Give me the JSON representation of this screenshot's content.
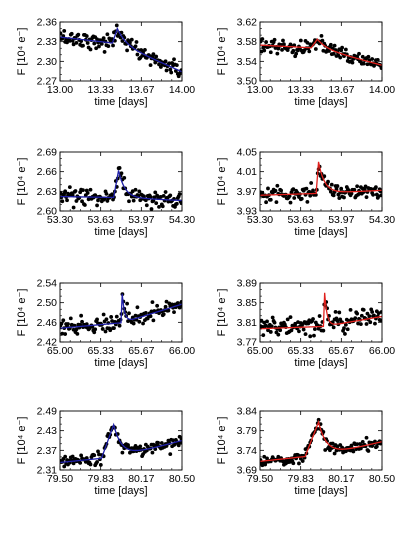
{
  "figure": {
    "xlabel": "time [days]",
    "ylabel": "F [10⁴ e⁻]"
  },
  "colors": {
    "blue": "#1f1fa8",
    "red": "#e0201c",
    "points": "#000000"
  },
  "chart_data": [
    {
      "type": "scatter",
      "row": 0,
      "col": 0,
      "fit_color": "blue",
      "xlim": [
        13.0,
        14.0
      ],
      "ylim": [
        2.27,
        2.36
      ],
      "xticks": [
        "13.00",
        "13.33",
        "13.67",
        "14.00"
      ],
      "yticks": [
        "2.27",
        "2.30",
        "2.33",
        "2.36"
      ],
      "flare": {
        "baseline_start": 2.337,
        "baseline_end": 2.316,
        "t_start": 13.43,
        "t_peak": 13.47,
        "peak": 2.35,
        "decay": 0.055,
        "tail_end": 2.284,
        "noise": 0.006
      }
    },
    {
      "type": "scatter",
      "row": 0,
      "col": 1,
      "fit_color": "red",
      "xlim": [
        13.0,
        14.0
      ],
      "ylim": [
        3.5,
        3.62
      ],
      "xticks": [
        "13.00",
        "13.33",
        "13.67",
        "14.00"
      ],
      "yticks": [
        "3.50",
        "3.54",
        "3.58",
        "3.62"
      ],
      "flare": {
        "baseline_start": 3.573,
        "baseline_end": 3.56,
        "t_start": 13.42,
        "t_peak": 13.47,
        "peak": 3.585,
        "decay": 0.06,
        "tail_end": 3.532,
        "noise": 0.008
      }
    },
    {
      "type": "scatter",
      "row": 1,
      "col": 0,
      "fit_color": "blue",
      "xlim": [
        53.3,
        54.3
      ],
      "ylim": [
        2.6,
        2.69
      ],
      "xticks": [
        "53.30",
        "53.63",
        "53.97",
        "54.30"
      ],
      "yticks": [
        "2.60",
        "2.63",
        "2.66",
        "2.69"
      ],
      "flare": {
        "baseline_start": 2.622,
        "baseline_end": 2.619,
        "t_start": 53.74,
        "t_peak": 53.78,
        "peak": 2.662,
        "decay": 0.05,
        "tail_end": 2.616,
        "noise": 0.006
      }
    },
    {
      "type": "scatter",
      "row": 1,
      "col": 1,
      "fit_color": "red",
      "xlim": [
        53.3,
        54.3
      ],
      "ylim": [
        3.93,
        4.05
      ],
      "xticks": [
        "53.30",
        "53.63",
        "53.97",
        "54.30"
      ],
      "yticks": [
        "3.93",
        "3.97",
        "4.01",
        "4.05"
      ],
      "flare": {
        "baseline_start": 3.962,
        "baseline_end": 3.97,
        "t_start": 53.76,
        "t_peak": 53.78,
        "peak": 4.03,
        "decay": 0.05,
        "tail_end": 3.972,
        "noise": 0.008
      }
    },
    {
      "type": "scatter",
      "row": 2,
      "col": 0,
      "fit_color": "blue",
      "xlim": [
        65.0,
        66.0
      ],
      "ylim": [
        2.42,
        2.54
      ],
      "xticks": [
        "65.00",
        "65.33",
        "65.67",
        "66.00"
      ],
      "yticks": [
        "2.42",
        "2.46",
        "2.50",
        "2.54"
      ],
      "flare": {
        "baseline_start": 2.448,
        "baseline_end": 2.47,
        "t_start": 65.5,
        "t_peak": 65.51,
        "peak": 2.518,
        "decay": 0.02,
        "tail_end": 2.497,
        "noise": 0.008
      }
    },
    {
      "type": "scatter",
      "row": 2,
      "col": 1,
      "fit_color": "red",
      "xlim": [
        65.0,
        66.0
      ],
      "ylim": [
        3.77,
        3.89
      ],
      "xticks": [
        "65.00",
        "65.33",
        "65.67",
        "66.00"
      ],
      "yticks": [
        "3.77",
        "3.81",
        "3.85",
        "3.89"
      ],
      "flare": {
        "baseline_start": 3.797,
        "baseline_end": 3.806,
        "t_start": 65.52,
        "t_peak": 65.53,
        "peak": 3.87,
        "decay": 0.02,
        "tail_end": 3.822,
        "noise": 0.009
      }
    },
    {
      "type": "scatter",
      "row": 3,
      "col": 0,
      "fit_color": "blue",
      "xlim": [
        79.5,
        80.5
      ],
      "ylim": [
        2.31,
        2.49
      ],
      "xticks": [
        "79.50",
        "79.83",
        "80.17",
        "80.50"
      ],
      "yticks": [
        "2.31",
        "2.37",
        "2.43",
        "2.49"
      ],
      "flare": {
        "baseline_start": 2.333,
        "baseline_end": 2.37,
        "t_start": 79.84,
        "t_peak": 79.94,
        "peak": 2.448,
        "decay": 0.07,
        "tail_end": 2.4,
        "noise": 0.009
      }
    },
    {
      "type": "scatter",
      "row": 3,
      "col": 1,
      "fit_color": "red",
      "xlim": [
        79.5,
        80.5
      ],
      "ylim": [
        3.69,
        3.84
      ],
      "xticks": [
        "79.50",
        "79.83",
        "80.17",
        "80.50"
      ],
      "yticks": [
        "3.69",
        "3.74",
        "3.79",
        "3.84"
      ],
      "flare": {
        "baseline_start": 3.712,
        "baseline_end": 3.745,
        "t_start": 79.87,
        "t_peak": 79.98,
        "peak": 3.812,
        "decay": 0.07,
        "tail_end": 3.762,
        "noise": 0.008
      }
    }
  ]
}
